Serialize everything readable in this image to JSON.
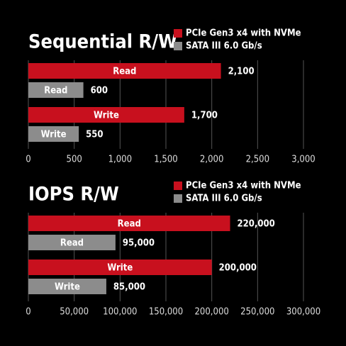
{
  "chart_data": [
    {
      "type": "bar",
      "title": "Sequential R/W",
      "categories": [
        "Read",
        "Write"
      ],
      "series": [
        {
          "name": "PCIe Gen3 x4 with NVMe",
          "color": "#c8101e",
          "values": [
            2100,
            1700
          ],
          "value_labels": [
            "2,100",
            "1,700"
          ]
        },
        {
          "name": "SATA III 6.0 Gb/s",
          "color": "#8c8c8c",
          "values": [
            600,
            550
          ]
        }
      ],
      "xlim": [
        0,
        3000
      ],
      "xticks": [
        0,
        500,
        {
          "value": 1000,
          "label": "1,000"
        },
        {
          "value": 1500,
          "label": "1,500"
        },
        {
          "value": 2000,
          "label": "2,000"
        },
        {
          "value": 2500,
          "label": "2,500"
        },
        {
          "value": 3000,
          "label": "3,000"
        }
      ],
      "grid": true
    },
    {
      "type": "bar",
      "title": "IOPS R/W",
      "categories": [
        "Read",
        "Write"
      ],
      "series": [
        {
          "name": "PCIe Gen3 x4 with NVMe",
          "color": "#c8101e",
          "values": [
            220000,
            200000
          ],
          "value_labels": [
            "220,000",
            "200,000"
          ]
        },
        {
          "name": "SATA III 6.0 Gb/s",
          "color": "#8c8c8c",
          "values": [
            95000,
            85000
          ],
          "value_labels": [
            "95,000",
            "85,000"
          ]
        }
      ],
      "xlim": [
        0,
        300000
      ],
      "xticks": [
        0,
        {
          "value": 50000,
          "label": "50,000"
        },
        {
          "value": 100000,
          "label": "100,000"
        },
        {
          "value": 150000,
          "label": "150,000"
        },
        {
          "value": 200000,
          "label": "200,000"
        },
        {
          "value": 250000,
          "label": "250,000"
        },
        {
          "value": 300000,
          "label": "300,000"
        }
      ],
      "grid": true
    }
  ]
}
